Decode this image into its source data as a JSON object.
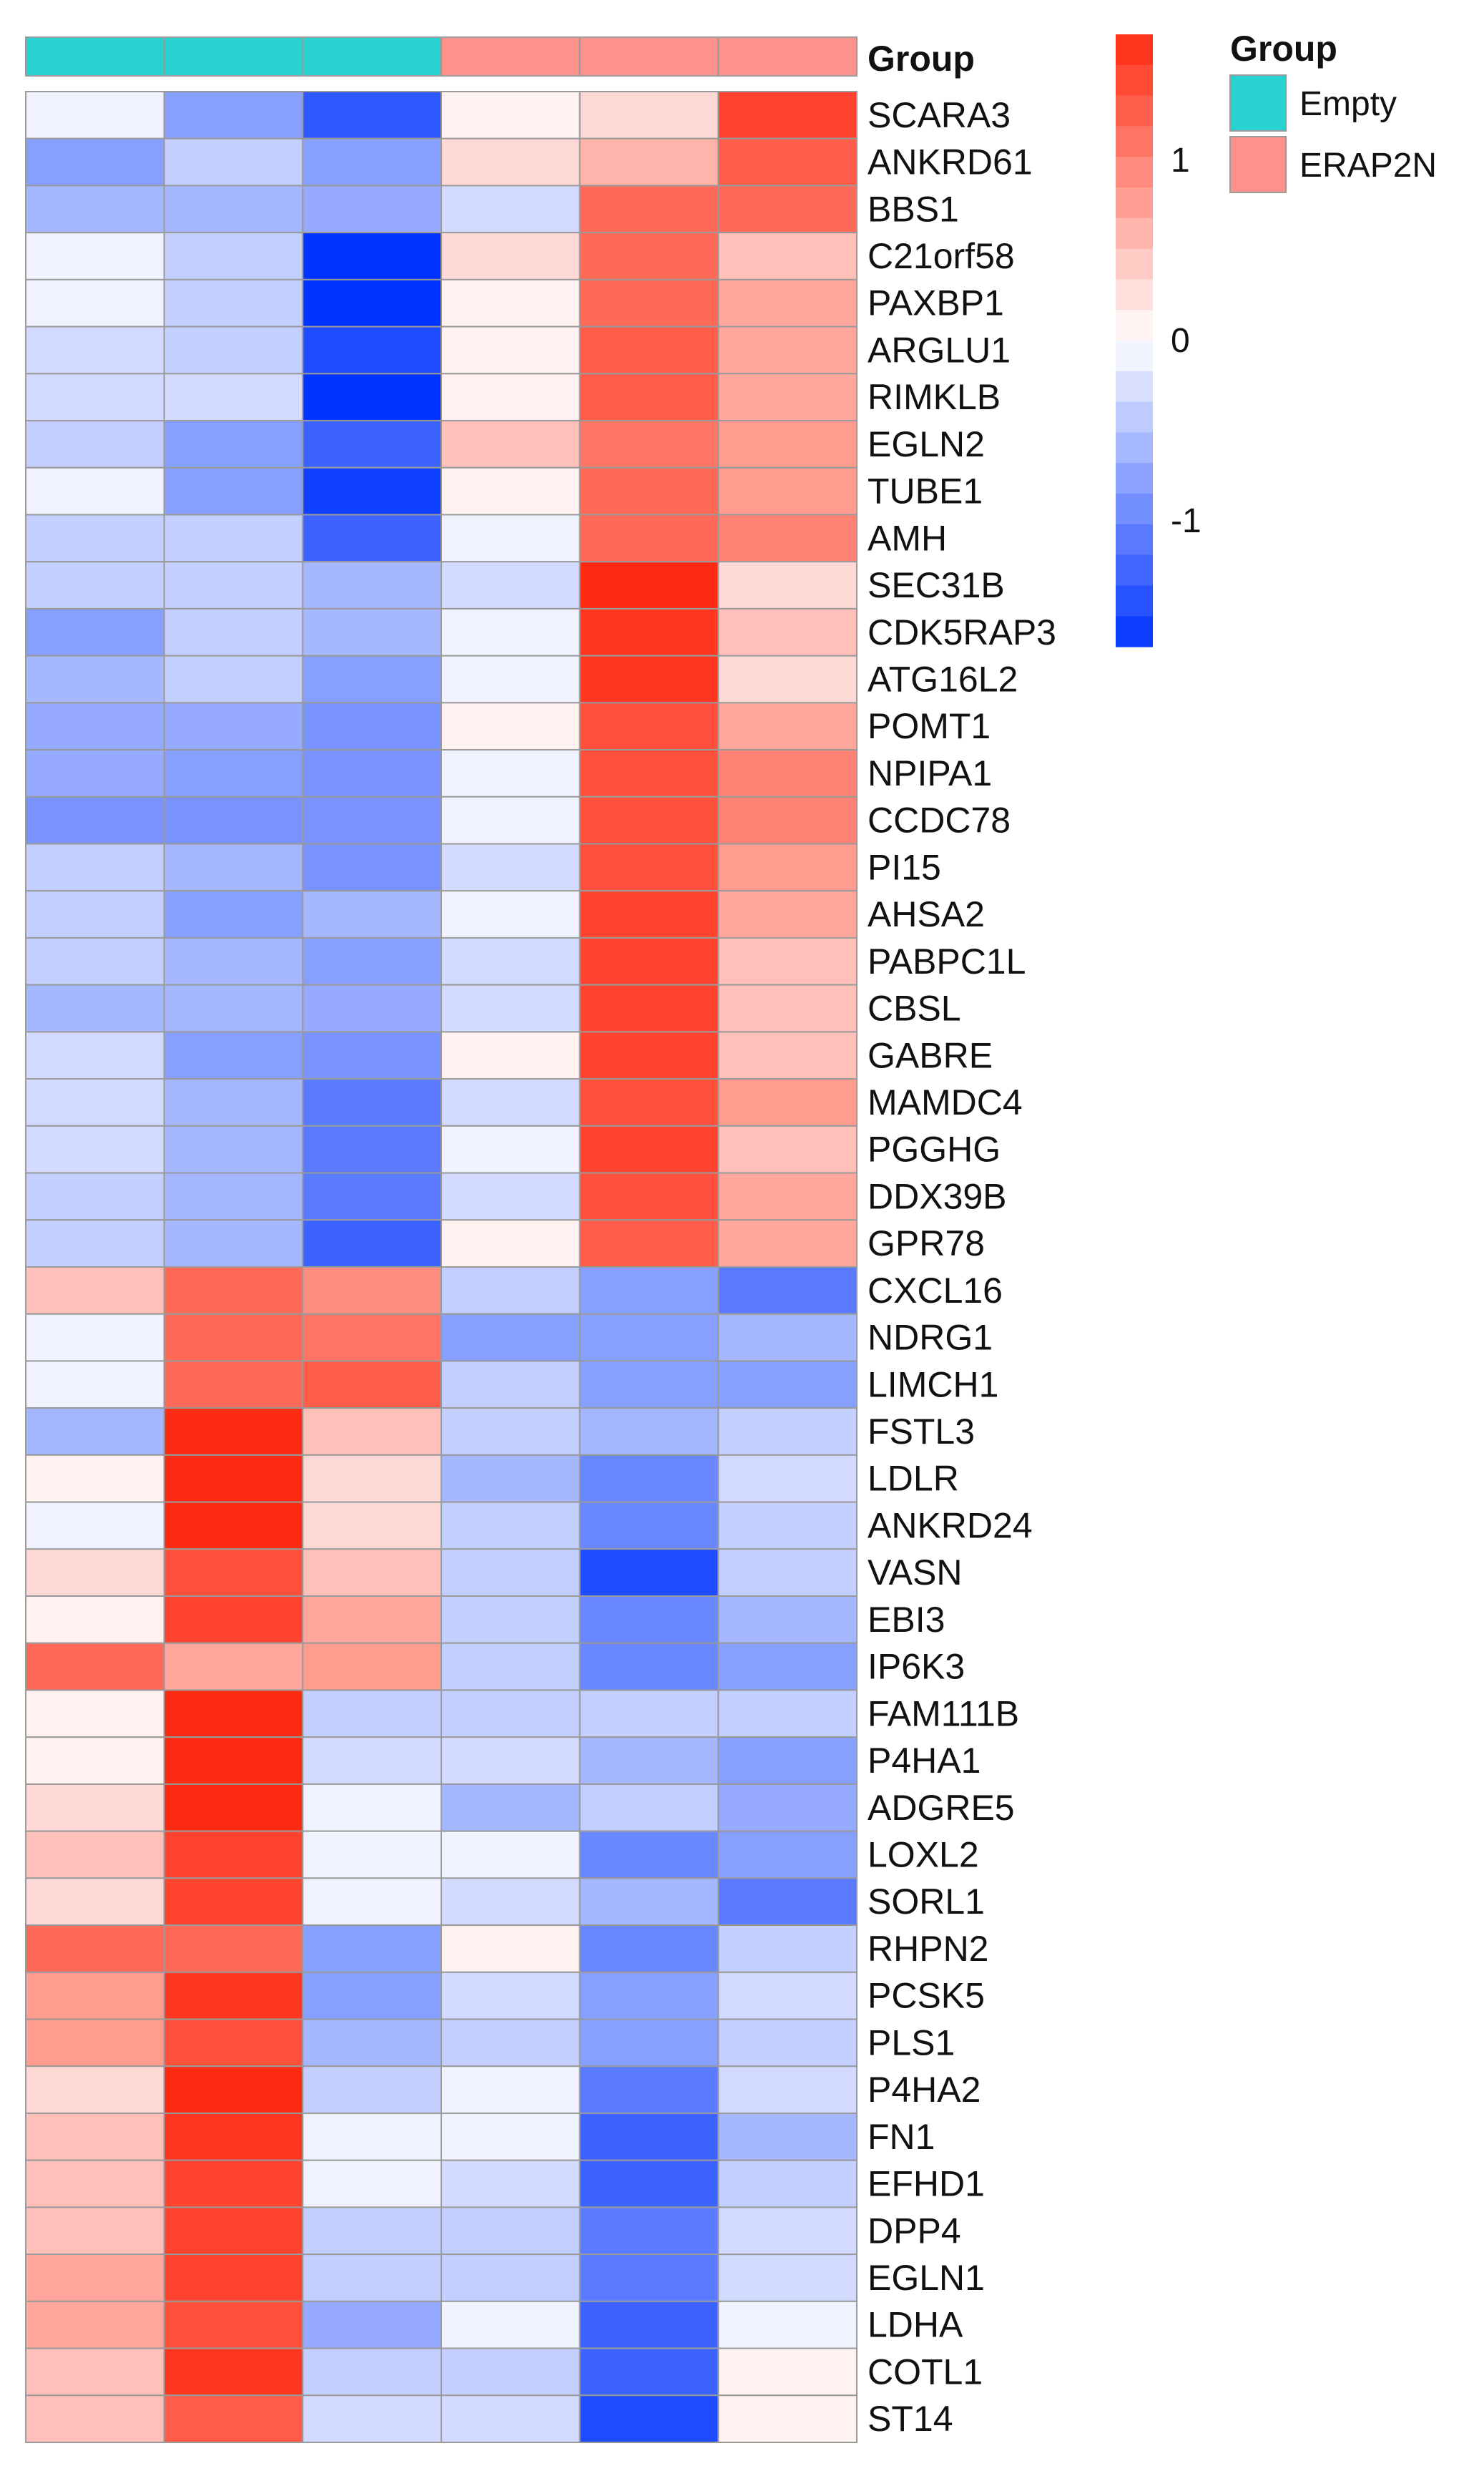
{
  "chart_data": {
    "type": "heatmap",
    "title": "",
    "xlabel": "",
    "ylabel": "",
    "annotation": {
      "title": "Group",
      "column_groups": [
        "Empty",
        "Empty",
        "Empty",
        "ERAP2N",
        "ERAP2N",
        "ERAP2N"
      ],
      "legend": [
        {
          "label": "Empty",
          "color": "#2ad1d1"
        },
        {
          "label": "ERAP2N",
          "color": "#fd918b"
        }
      ]
    },
    "color_scale": {
      "min": -1.7,
      "max": 1.7,
      "ticks": [
        {
          "value": 1,
          "label": "1"
        },
        {
          "value": 0,
          "label": "0"
        },
        {
          "value": -1,
          "label": "-1"
        }
      ],
      "low_color": "#0033ff",
      "mid_color": "#ffffff",
      "high_color": "#ff2a12"
    },
    "rows": [
      "SCARA3",
      "ANKRD61",
      "BBS1",
      "C21orf58",
      "PAXBP1",
      "ARGLU1",
      "RIMKLB",
      "EGLN2",
      "TUBE1",
      "AMH",
      "SEC31B",
      "CDK5RAP3",
      "ATG16L2",
      "POMT1",
      "NPIPA1",
      "CCDC78",
      "PI15",
      "AHSA2",
      "PABPC1L",
      "CBSL",
      "GABRE",
      "MAMDC4",
      "PGGHG",
      "DDX39B",
      "GPR78",
      "CXCL16",
      "NDRG1",
      "LIMCH1",
      "FSTL3",
      "LDLR",
      "ANKRD24",
      "VASN",
      "EBI3",
      "IP6K3",
      "FAM111B",
      "P4HA1",
      "ADGRE5",
      "LOXL2",
      "SORL1",
      "RHPN2",
      "PCSK5",
      "PLS1",
      "P4HA2",
      "FN1",
      "EFHD1",
      "DPP4",
      "EGLN1",
      "LDHA",
      "COTL1",
      "ST14"
    ],
    "values": [
      [
        -0.1,
        -0.8,
        -1.4,
        0.1,
        0.3,
        1.5
      ],
      [
        -0.8,
        -0.4,
        -0.8,
        0.3,
        0.6,
        1.3
      ],
      [
        -0.6,
        -0.6,
        -0.7,
        -0.3,
        1.2,
        1.2
      ],
      [
        -0.1,
        -0.4,
        -1.7,
        0.3,
        1.2,
        0.5
      ],
      [
        -0.1,
        -0.4,
        -1.7,
        0.1,
        1.2,
        0.7
      ],
      [
        -0.3,
        -0.4,
        -1.5,
        0.1,
        1.3,
        0.7
      ],
      [
        -0.3,
        -0.3,
        -1.7,
        0.1,
        1.3,
        0.7
      ],
      [
        -0.4,
        -0.8,
        -1.3,
        0.5,
        1.1,
        0.8
      ],
      [
        -0.1,
        -0.8,
        -1.6,
        0.1,
        1.2,
        0.8
      ],
      [
        -0.4,
        -0.4,
        -1.3,
        -0.1,
        1.2,
        1.0
      ],
      [
        -0.4,
        -0.4,
        -0.6,
        -0.3,
        1.7,
        0.3
      ],
      [
        -0.8,
        -0.4,
        -0.6,
        -0.1,
        1.6,
        0.5
      ],
      [
        -0.6,
        -0.4,
        -0.8,
        -0.1,
        1.6,
        0.3
      ],
      [
        -0.7,
        -0.7,
        -0.9,
        0.1,
        1.4,
        0.7
      ],
      [
        -0.7,
        -0.8,
        -0.9,
        -0.1,
        1.4,
        1.0
      ],
      [
        -0.9,
        -0.9,
        -0.9,
        -0.1,
        1.4,
        1.0
      ],
      [
        -0.4,
        -0.6,
        -0.9,
        -0.3,
        1.4,
        0.8
      ],
      [
        -0.4,
        -0.8,
        -0.6,
        -0.1,
        1.5,
        0.7
      ],
      [
        -0.4,
        -0.6,
        -0.8,
        -0.3,
        1.5,
        0.5
      ],
      [
        -0.6,
        -0.6,
        -0.7,
        -0.3,
        1.5,
        0.5
      ],
      [
        -0.3,
        -0.8,
        -0.9,
        0.1,
        1.5,
        0.5
      ],
      [
        -0.3,
        -0.6,
        -1.1,
        -0.3,
        1.4,
        0.8
      ],
      [
        -0.3,
        -0.6,
        -1.1,
        -0.1,
        1.5,
        0.5
      ],
      [
        -0.4,
        -0.6,
        -1.1,
        -0.3,
        1.4,
        0.7
      ],
      [
        -0.4,
        -0.6,
        -1.3,
        0.1,
        1.3,
        0.7
      ],
      [
        0.5,
        1.2,
        0.9,
        -0.4,
        -0.8,
        -1.1
      ],
      [
        -0.1,
        1.2,
        1.1,
        -0.8,
        -0.8,
        -0.6
      ],
      [
        -0.1,
        1.2,
        1.3,
        -0.4,
        -0.8,
        -0.8
      ],
      [
        -0.6,
        1.7,
        0.5,
        -0.4,
        -0.6,
        -0.4
      ],
      [
        0.1,
        1.7,
        0.3,
        -0.6,
        -1.0,
        -0.3
      ],
      [
        -0.1,
        1.7,
        0.3,
        -0.4,
        -1.0,
        -0.4
      ],
      [
        0.3,
        1.4,
        0.5,
        -0.4,
        -1.5,
        -0.4
      ],
      [
        0.1,
        1.5,
        0.7,
        -0.4,
        -1.0,
        -0.6
      ],
      [
        1.2,
        0.7,
        0.8,
        -0.4,
        -1.0,
        -0.8
      ],
      [
        0.1,
        1.7,
        -0.4,
        -0.4,
        -0.4,
        -0.4
      ],
      [
        0.1,
        1.7,
        -0.3,
        -0.3,
        -0.6,
        -0.8
      ],
      [
        0.3,
        1.7,
        -0.1,
        -0.6,
        -0.4,
        -0.7
      ],
      [
        0.5,
        1.5,
        -0.1,
        -0.1,
        -1.0,
        -0.8
      ],
      [
        0.3,
        1.5,
        -0.1,
        -0.3,
        -0.6,
        -1.1
      ],
      [
        1.2,
        1.2,
        -0.8,
        0.1,
        -1.0,
        -0.4
      ],
      [
        0.8,
        1.6,
        -0.8,
        -0.3,
        -0.8,
        -0.3
      ],
      [
        0.8,
        1.4,
        -0.6,
        -0.4,
        -0.8,
        -0.4
      ],
      [
        0.3,
        1.7,
        -0.4,
        -0.1,
        -1.1,
        -0.3
      ],
      [
        0.5,
        1.6,
        -0.1,
        -0.1,
        -1.3,
        -0.6
      ],
      [
        0.5,
        1.5,
        -0.1,
        -0.3,
        -1.3,
        -0.4
      ],
      [
        0.5,
        1.5,
        -0.4,
        -0.4,
        -1.1,
        -0.3
      ],
      [
        0.7,
        1.5,
        -0.4,
        -0.4,
        -1.1,
        -0.3
      ],
      [
        0.7,
        1.4,
        -0.7,
        -0.1,
        -1.3,
        -0.1
      ],
      [
        0.5,
        1.6,
        -0.4,
        -0.4,
        -1.3,
        0.1
      ],
      [
        0.5,
        1.3,
        -0.3,
        -0.3,
        -1.5,
        0.1
      ]
    ]
  }
}
